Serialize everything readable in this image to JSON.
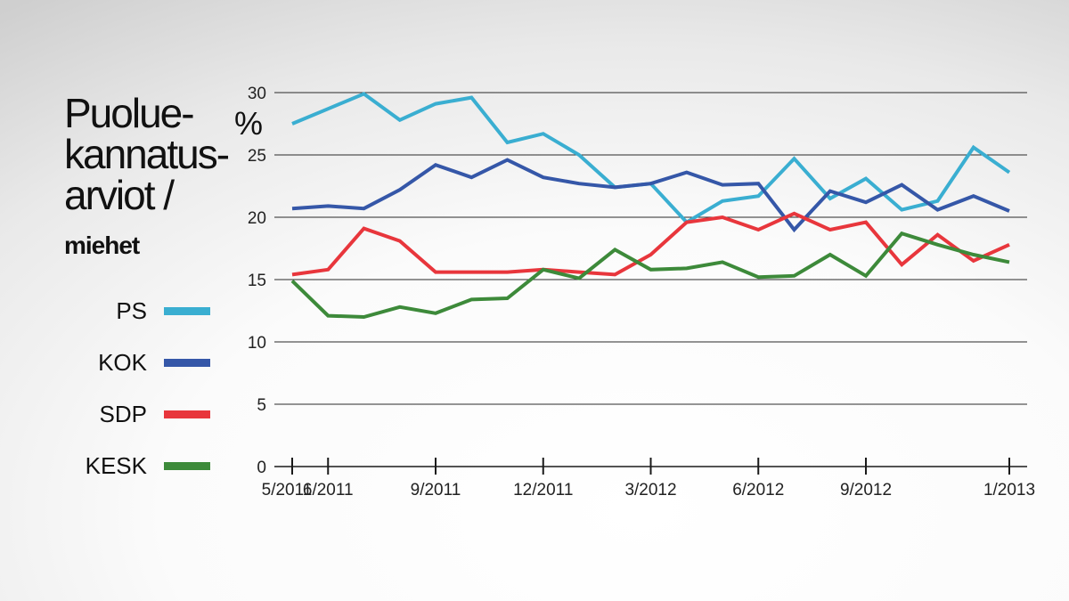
{
  "title": {
    "lines": [
      "Puolue-",
      "kannatus-",
      "arviot /"
    ],
    "subtitle": "miehet"
  },
  "unit_label": "%",
  "legend": [
    {
      "label": "PS",
      "color": "#3aaed1"
    },
    {
      "label": "KOK",
      "color": "#3557a8"
    },
    {
      "label": "SDP",
      "color": "#e8363c"
    },
    {
      "label": "KESK",
      "color": "#3d8a3a"
    }
  ],
  "chart_data": {
    "type": "line",
    "title": "Puolue-kannatus-arviot / miehet",
    "xlabel": "",
    "ylabel": "%",
    "ylim": [
      0,
      30
    ],
    "y_ticks": [
      0,
      5,
      10,
      15,
      20,
      25,
      30
    ],
    "grid": true,
    "x_tick_labels": [
      {
        "label": "5/2011",
        "index": 0
      },
      {
        "label": "6/2011",
        "index": 1
      },
      {
        "label": "9/2011",
        "index": 4
      },
      {
        "label": "12/2011",
        "index": 7
      },
      {
        "label": "3/2012",
        "index": 10
      },
      {
        "label": "6/2012",
        "index": 13
      },
      {
        "label": "9/2012",
        "index": 16
      },
      {
        "label": "1/2013",
        "index": 20
      }
    ],
    "n_points": 21,
    "series": [
      {
        "name": "PS",
        "color": "#3aaed1",
        "values": [
          27.5,
          28.7,
          29.9,
          27.8,
          29.1,
          29.6,
          26.0,
          26.7,
          25.0,
          22.4,
          22.7,
          19.6,
          21.3,
          21.7,
          24.7,
          21.5,
          23.1,
          20.6,
          21.3,
          25.6,
          23.6
        ]
      },
      {
        "name": "KOK",
        "color": "#3557a8",
        "values": [
          20.7,
          20.9,
          20.7,
          22.2,
          24.2,
          23.2,
          24.6,
          23.2,
          22.7,
          22.4,
          22.7,
          23.6,
          22.6,
          22.7,
          19.0,
          22.1,
          21.2,
          22.6,
          20.6,
          21.7,
          20.5
        ]
      },
      {
        "name": "SDP",
        "color": "#e8363c",
        "values": [
          15.4,
          15.8,
          19.1,
          18.1,
          15.6,
          15.6,
          15.6,
          15.8,
          15.6,
          15.4,
          17.0,
          19.6,
          20.0,
          19.0,
          20.3,
          19.0,
          19.6,
          16.2,
          18.6,
          16.5,
          17.8
        ]
      },
      {
        "name": "KESK",
        "color": "#3d8a3a",
        "values": [
          14.9,
          12.1,
          12.0,
          12.8,
          12.3,
          13.4,
          13.5,
          15.8,
          15.1,
          17.4,
          15.8,
          15.9,
          16.4,
          15.2,
          15.3,
          17.0,
          15.3,
          18.7,
          17.8,
          17.0,
          16.4
        ]
      }
    ]
  }
}
